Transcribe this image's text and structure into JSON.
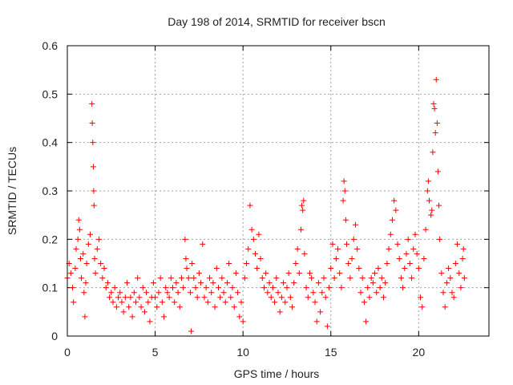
{
  "chart_data": {
    "type": "scatter",
    "title": "Day 198 of 2014, SRMTID for receiver bscn",
    "xlabel": "GPS time / hours",
    "ylabel": "SRMTID / TECUs",
    "xlim": [
      0,
      24
    ],
    "ylim": [
      0,
      0.6
    ],
    "xticks": [
      0,
      5,
      10,
      15,
      20
    ],
    "xtick_labels": [
      "0",
      "5",
      "10",
      "15",
      "20"
    ],
    "yticks": [
      0,
      0.1,
      0.2,
      0.3,
      0.4,
      0.5,
      0.6
    ],
    "ytick_labels": [
      "0",
      "0.1",
      "0.2",
      "0.3",
      "0.4",
      "0.5",
      "0.6"
    ],
    "grid": true,
    "marker": "+",
    "series": [
      {
        "name": "SRMTID",
        "color": "#ff0000",
        "points": [
          [
            0.0,
            0.12
          ],
          [
            0.1,
            0.15
          ],
          [
            0.2,
            0.13
          ],
          [
            0.3,
            0.1
          ],
          [
            0.35,
            0.07
          ],
          [
            0.45,
            0.14
          ],
          [
            0.5,
            0.18
          ],
          [
            0.6,
            0.2
          ],
          [
            0.65,
            0.24
          ],
          [
            0.7,
            0.22
          ],
          [
            0.75,
            0.16
          ],
          [
            0.8,
            0.12
          ],
          [
            0.9,
            0.17
          ],
          [
            0.95,
            0.09
          ],
          [
            1.0,
            0.04
          ],
          [
            1.05,
            0.11
          ],
          [
            1.1,
            0.15
          ],
          [
            1.2,
            0.19
          ],
          [
            1.3,
            0.21
          ],
          [
            1.4,
            0.48
          ],
          [
            1.42,
            0.44
          ],
          [
            1.45,
            0.4
          ],
          [
            1.48,
            0.35
          ],
          [
            1.5,
            0.3
          ],
          [
            1.52,
            0.27
          ],
          [
            1.55,
            0.16
          ],
          [
            1.6,
            0.13
          ],
          [
            1.7,
            0.18
          ],
          [
            1.8,
            0.2
          ],
          [
            1.9,
            0.15
          ],
          [
            2.0,
            0.12
          ],
          [
            2.1,
            0.14
          ],
          [
            2.2,
            0.1
          ],
          [
            2.3,
            0.11
          ],
          [
            2.4,
            0.08
          ],
          [
            2.5,
            0.09
          ],
          [
            2.6,
            0.07
          ],
          [
            2.7,
            0.1
          ],
          [
            2.8,
            0.06
          ],
          [
            2.9,
            0.08
          ],
          [
            3.0,
            0.09
          ],
          [
            3.1,
            0.07
          ],
          [
            3.2,
            0.05
          ],
          [
            3.3,
            0.08
          ],
          [
            3.4,
            0.11
          ],
          [
            3.5,
            0.06
          ],
          [
            3.6,
            0.08
          ],
          [
            3.7,
            0.04
          ],
          [
            3.8,
            0.09
          ],
          [
            3.9,
            0.07
          ],
          [
            4.0,
            0.12
          ],
          [
            4.1,
            0.08
          ],
          [
            4.2,
            0.06
          ],
          [
            4.3,
            0.1
          ],
          [
            4.4,
            0.05
          ],
          [
            4.5,
            0.09
          ],
          [
            4.6,
            0.07
          ],
          [
            4.7,
            0.03
          ],
          [
            4.8,
            0.08
          ],
          [
            4.9,
            0.11
          ],
          [
            5.0,
            0.08
          ],
          [
            5.1,
            0.06
          ],
          [
            5.2,
            0.09
          ],
          [
            5.3,
            0.12
          ],
          [
            5.4,
            0.07
          ],
          [
            5.5,
            0.04
          ],
          [
            5.6,
            0.1
          ],
          [
            5.7,
            0.09
          ],
          [
            5.8,
            0.08
          ],
          [
            5.9,
            0.12
          ],
          [
            6.0,
            0.1
          ],
          [
            6.1,
            0.07
          ],
          [
            6.2,
            0.11
          ],
          [
            6.3,
            0.09
          ],
          [
            6.4,
            0.06
          ],
          [
            6.5,
            0.12
          ],
          [
            6.6,
            0.1
          ],
          [
            6.7,
            0.2
          ],
          [
            6.75,
            0.16
          ],
          [
            6.8,
            0.14
          ],
          [
            6.9,
            0.12
          ],
          [
            7.0,
            0.09
          ],
          [
            7.05,
            0.01
          ],
          [
            7.1,
            0.15
          ],
          [
            7.2,
            0.12
          ],
          [
            7.3,
            0.1
          ],
          [
            7.4,
            0.08
          ],
          [
            7.5,
            0.13
          ],
          [
            7.6,
            0.11
          ],
          [
            7.7,
            0.19
          ],
          [
            7.8,
            0.08
          ],
          [
            7.9,
            0.1
          ],
          [
            8.0,
            0.07
          ],
          [
            8.1,
            0.12
          ],
          [
            8.2,
            0.09
          ],
          [
            8.3,
            0.11
          ],
          [
            8.4,
            0.06
          ],
          [
            8.5,
            0.14
          ],
          [
            8.6,
            0.1
          ],
          [
            8.7,
            0.08
          ],
          [
            8.8,
            0.12
          ],
          [
            8.9,
            0.09
          ],
          [
            9.0,
            0.07
          ],
          [
            9.1,
            0.11
          ],
          [
            9.2,
            0.15
          ],
          [
            9.3,
            0.08
          ],
          [
            9.4,
            0.1
          ],
          [
            9.5,
            0.06
          ],
          [
            9.6,
            0.13
          ],
          [
            9.7,
            0.09
          ],
          [
            9.8,
            0.04
          ],
          [
            9.9,
            0.07
          ],
          [
            10.0,
            0.03
          ],
          [
            10.1,
            0.12
          ],
          [
            10.2,
            0.15
          ],
          [
            10.3,
            0.18
          ],
          [
            10.4,
            0.27
          ],
          [
            10.5,
            0.22
          ],
          [
            10.6,
            0.2
          ],
          [
            10.7,
            0.17
          ],
          [
            10.8,
            0.14
          ],
          [
            10.9,
            0.21
          ],
          [
            11.0,
            0.16
          ],
          [
            11.1,
            0.12
          ],
          [
            11.2,
            0.1
          ],
          [
            11.3,
            0.13
          ],
          [
            11.4,
            0.09
          ],
          [
            11.5,
            0.11
          ],
          [
            11.6,
            0.08
          ],
          [
            11.7,
            0.1
          ],
          [
            11.8,
            0.07
          ],
          [
            11.9,
            0.12
          ],
          [
            12.0,
            0.09
          ],
          [
            12.1,
            0.05
          ],
          [
            12.2,
            0.08
          ],
          [
            12.3,
            0.11
          ],
          [
            12.4,
            0.07
          ],
          [
            12.5,
            0.1
          ],
          [
            12.6,
            0.13
          ],
          [
            12.7,
            0.08
          ],
          [
            12.8,
            0.06
          ],
          [
            12.9,
            0.11
          ],
          [
            13.0,
            0.15
          ],
          [
            13.1,
            0.18
          ],
          [
            13.2,
            0.13
          ],
          [
            13.3,
            0.22
          ],
          [
            13.35,
            0.27
          ],
          [
            13.4,
            0.26
          ],
          [
            13.45,
            0.28
          ],
          [
            13.5,
            0.17
          ],
          [
            13.6,
            0.1
          ],
          [
            13.7,
            0.08
          ],
          [
            13.8,
            0.13
          ],
          [
            13.9,
            0.12
          ],
          [
            14.0,
            0.09
          ],
          [
            14.1,
            0.07
          ],
          [
            14.2,
            0.03
          ],
          [
            14.3,
            0.11
          ],
          [
            14.4,
            0.05
          ],
          [
            14.5,
            0.09
          ],
          [
            14.6,
            0.12
          ],
          [
            14.7,
            0.08
          ],
          [
            14.8,
            0.02
          ],
          [
            14.9,
            0.1
          ],
          [
            15.0,
            0.14
          ],
          [
            15.1,
            0.19
          ],
          [
            15.2,
            0.12
          ],
          [
            15.3,
            0.16
          ],
          [
            15.4,
            0.18
          ],
          [
            15.5,
            0.13
          ],
          [
            15.6,
            0.1
          ],
          [
            15.7,
            0.28
          ],
          [
            15.75,
            0.32
          ],
          [
            15.8,
            0.3
          ],
          [
            15.85,
            0.24
          ],
          [
            15.9,
            0.19
          ],
          [
            16.0,
            0.15
          ],
          [
            16.1,
            0.12
          ],
          [
            16.2,
            0.16
          ],
          [
            16.3,
            0.2
          ],
          [
            16.4,
            0.23
          ],
          [
            16.5,
            0.18
          ],
          [
            16.6,
            0.14
          ],
          [
            16.7,
            0.09
          ],
          [
            16.8,
            0.12
          ],
          [
            16.9,
            0.07
          ],
          [
            17.0,
            0.03
          ],
          [
            17.1,
            0.1
          ],
          [
            17.2,
            0.08
          ],
          [
            17.3,
            0.12
          ],
          [
            17.4,
            0.11
          ],
          [
            17.5,
            0.13
          ],
          [
            17.6,
            0.09
          ],
          [
            17.7,
            0.14
          ],
          [
            17.8,
            0.1
          ],
          [
            17.9,
            0.12
          ],
          [
            18.0,
            0.08
          ],
          [
            18.1,
            0.11
          ],
          [
            18.2,
            0.15
          ],
          [
            18.3,
            0.18
          ],
          [
            18.4,
            0.21
          ],
          [
            18.5,
            0.24
          ],
          [
            18.6,
            0.28
          ],
          [
            18.7,
            0.26
          ],
          [
            18.8,
            0.19
          ],
          [
            18.9,
            0.16
          ],
          [
            19.0,
            0.12
          ],
          [
            19.1,
            0.1
          ],
          [
            19.2,
            0.14
          ],
          [
            19.3,
            0.17
          ],
          [
            19.4,
            0.2
          ],
          [
            19.5,
            0.15
          ],
          [
            19.6,
            0.12
          ],
          [
            19.7,
            0.18
          ],
          [
            19.8,
            0.21
          ],
          [
            19.9,
            0.17
          ],
          [
            20.0,
            0.14
          ],
          [
            20.1,
            0.08
          ],
          [
            20.2,
            0.06
          ],
          [
            20.3,
            0.16
          ],
          [
            20.4,
            0.22
          ],
          [
            20.5,
            0.3
          ],
          [
            20.55,
            0.32
          ],
          [
            20.6,
            0.28
          ],
          [
            20.7,
            0.25
          ],
          [
            20.75,
            0.26
          ],
          [
            20.8,
            0.38
          ],
          [
            20.85,
            0.48
          ],
          [
            20.9,
            0.47
          ],
          [
            20.95,
            0.42
          ],
          [
            21.0,
            0.53
          ],
          [
            21.05,
            0.44
          ],
          [
            21.1,
            0.34
          ],
          [
            21.15,
            0.27
          ],
          [
            21.2,
            0.2
          ],
          [
            21.3,
            0.13
          ],
          [
            21.4,
            0.09
          ],
          [
            21.5,
            0.06
          ],
          [
            21.6,
            0.11
          ],
          [
            21.7,
            0.14
          ],
          [
            21.8,
            0.12
          ],
          [
            21.9,
            0.09
          ],
          [
            22.0,
            0.08
          ],
          [
            22.1,
            0.15
          ],
          [
            22.2,
            0.19
          ],
          [
            22.3,
            0.13
          ],
          [
            22.4,
            0.1
          ],
          [
            22.5,
            0.16
          ],
          [
            22.55,
            0.18
          ],
          [
            22.6,
            0.12
          ]
        ]
      }
    ]
  }
}
